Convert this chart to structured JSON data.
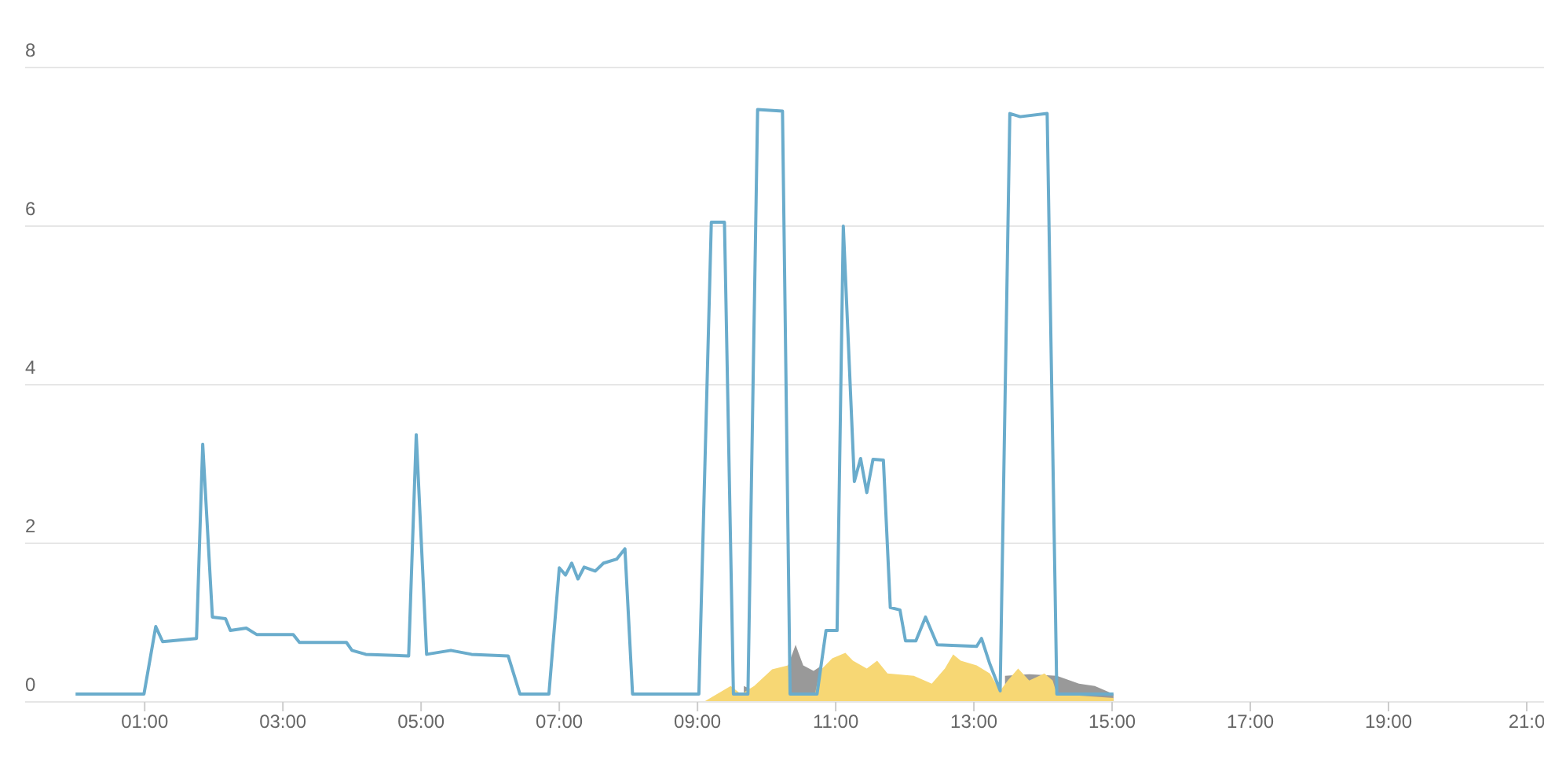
{
  "chart_data": {
    "type": "line",
    "xlim": [
      -0.73,
      21.25
    ],
    "ylim": [
      0,
      8
    ],
    "yticks": [
      0,
      2,
      4,
      6,
      8
    ],
    "xticks": [
      {
        "value": 1,
        "label": "01:00"
      },
      {
        "value": 3,
        "label": "03:00"
      },
      {
        "value": 5,
        "label": "05:00"
      },
      {
        "value": 7,
        "label": "07:00"
      },
      {
        "value": 9,
        "label": "09:00"
      },
      {
        "value": 11,
        "label": "11:00"
      },
      {
        "value": 13,
        "label": "13:00"
      },
      {
        "value": 15,
        "label": "15:00"
      },
      {
        "value": 17,
        "label": "17:00"
      },
      {
        "value": 19,
        "label": "19:00"
      },
      {
        "value": 21,
        "label": "21:0"
      }
    ],
    "grid": "y",
    "marker": "none",
    "series": [
      {
        "type": "area",
        "color": "#999999",
        "x": [
          9.67,
          9.8,
          10.0,
          10.31,
          10.42,
          10.53,
          10.68,
          10.8,
          12.0,
          13.38,
          13.45,
          13.8,
          14.2,
          14.52,
          14.75,
          15.02
        ],
        "values": [
          0.2,
          0.15,
          null,
          0.46,
          0.72,
          0.46,
          0.39,
          0.46,
          null,
          null,
          0.33,
          0.35,
          0.33,
          0.23,
          0.2,
          0.1
        ]
      },
      {
        "type": "area",
        "color": "#f7d774",
        "x": [
          9.09,
          9.48,
          9.63,
          9.82,
          10.08,
          10.31,
          10.34,
          10.7,
          10.77,
          10.95,
          11.14,
          11.25,
          11.45,
          11.6,
          11.75,
          12.13,
          12.39,
          12.58,
          12.7,
          12.81,
          13.04,
          13.23,
          13.38,
          13.49,
          13.64,
          13.8,
          14.02,
          14.14,
          14.2,
          15.02
        ],
        "values": [
          0,
          0.2,
          0.1,
          0.2,
          0.41,
          0.46,
          0.1,
          0.1,
          0.39,
          0.55,
          0.62,
          0.52,
          0.42,
          0.52,
          0.36,
          0.33,
          0.23,
          0.42,
          0.6,
          0.52,
          0.46,
          0.36,
          0.14,
          0.27,
          0.42,
          0.27,
          0.36,
          0.27,
          0.1,
          0.05
        ]
      },
      {
        "color": "#6aaccc",
        "x": [
          0,
          0.99,
          1.16,
          1.26,
          1.75,
          1.84,
          1.98,
          2.17,
          2.24,
          2.47,
          2.62,
          3.15,
          3.24,
          3.92,
          4.0,
          4.2,
          4.82,
          4.93,
          5.08,
          5.43,
          5.73,
          6.26,
          6.43,
          6.85,
          7.0,
          7.09,
          7.18,
          7.27,
          7.36,
          7.52,
          7.64,
          7.83,
          7.95,
          8.06,
          9.02,
          9.2,
          9.39,
          9.52,
          9.73,
          9.87,
          10.23,
          10.34,
          10.73,
          10.86,
          11.02,
          11.11,
          11.27,
          11.36,
          11.45,
          11.54,
          11.69,
          11.79,
          11.93,
          12.01,
          12.16,
          12.3,
          12.47,
          13.04,
          13.11,
          13.23,
          13.38,
          13.52,
          13.67,
          14.06,
          14.2,
          15.02
        ],
        "values": [
          0.1,
          0.1,
          0.95,
          0.76,
          0.8,
          3.25,
          1.07,
          1.05,
          0.9,
          0.93,
          0.85,
          0.85,
          0.75,
          0.75,
          0.65,
          0.6,
          0.58,
          3.37,
          0.6,
          0.65,
          0.6,
          0.58,
          0.1,
          0.1,
          1.69,
          1.6,
          1.75,
          1.55,
          1.7,
          1.65,
          1.75,
          1.8,
          1.93,
          0.1,
          0.1,
          6.05,
          6.05,
          0.1,
          0.1,
          7.47,
          7.45,
          0.1,
          0.1,
          0.9,
          0.9,
          6.0,
          2.78,
          3.07,
          2.64,
          3.06,
          3.05,
          1.19,
          1.16,
          0.77,
          0.77,
          1.07,
          0.72,
          0.7,
          0.8,
          0.48,
          0.14,
          7.42,
          7.38,
          7.42,
          0.1,
          0.1
        ]
      }
    ]
  }
}
